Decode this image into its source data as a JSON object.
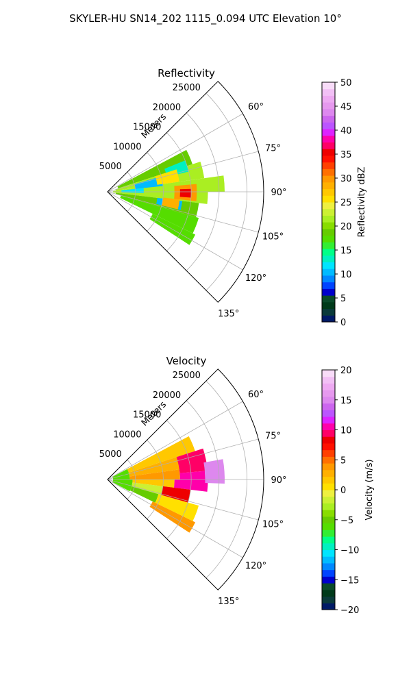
{
  "figure": {
    "suptitle": "SKYLER-HU  SN14_202  1115_0.094 UTC Elevation 10°"
  },
  "chart_data": [
    {
      "type": "heatmap",
      "projection": "polar-sector",
      "title": "Reflectivity",
      "radial_axis_label": "Meters",
      "radial_ticks": [
        "5000",
        "10000",
        "15000",
        "20000",
        "25000"
      ],
      "radial_tick_values": [
        5000,
        10000,
        15000,
        20000,
        25000
      ],
      "radial_range": [
        0,
        28000
      ],
      "azimuth_ticks": [
        "60°",
        "75°",
        "90°",
        "105°",
        "120°",
        "135°"
      ],
      "azimuth_tick_values": [
        60,
        75,
        90,
        105,
        120,
        135
      ],
      "azimuth_range": [
        45,
        135
      ],
      "grid": true,
      "colorbar": {
        "label": "Reflectivity dBZ",
        "ticks": [
          "0",
          "5",
          "10",
          "15",
          "20",
          "25",
          "30",
          "35",
          "40",
          "45",
          "50"
        ],
        "range": [
          0,
          50
        ],
        "colors": [
          "#001a66",
          "#0a3a3a",
          "#003a1a",
          "#0a4a2a",
          "#0000cc",
          "#0044ff",
          "#0088ff",
          "#00bbff",
          "#00e5ff",
          "#00f0c0",
          "#00ff88",
          "#33ee33",
          "#55dd00",
          "#66cc00",
          "#88dd00",
          "#aaee22",
          "#ccf033",
          "#eef040",
          "#ffe000",
          "#ffc800",
          "#ffb000",
          "#ff9900",
          "#ff7000",
          "#ff4000",
          "#ff1000",
          "#ee0000",
          "#ff0066",
          "#ff00aa",
          "#dd22ff",
          "#bb55ff",
          "#cc66ee",
          "#dd88ee",
          "#e699ee",
          "#eeaaf2",
          "#f2c0f5",
          "#f8dcf8"
        ]
      },
      "cells": [
        {
          "az_min": 62,
          "az_max": 72,
          "r_min": 2000,
          "r_max": 16000,
          "value": 19
        },
        {
          "az_min": 72,
          "az_max": 82,
          "r_min": 1500,
          "r_max": 17500,
          "value": 21
        },
        {
          "az_min": 82,
          "az_max": 90,
          "r_min": 1000,
          "r_max": 21000,
          "value": 22
        },
        {
          "az_min": 90,
          "az_max": 97,
          "r_min": 1000,
          "r_max": 18000,
          "value": 21
        },
        {
          "az_min": 97,
          "az_max": 106,
          "r_min": 1500,
          "r_max": 16500,
          "value": 19
        },
        {
          "az_min": 106,
          "az_max": 116,
          "r_min": 2500,
          "r_max": 17000,
          "value": 18
        },
        {
          "az_min": 116,
          "az_max": 123,
          "r_min": 9000,
          "r_max": 17500,
          "value": 17
        },
        {
          "az_min": 84,
          "az_max": 92,
          "r_min": 2500,
          "r_max": 6500,
          "value": 12
        },
        {
          "az_min": 74,
          "az_max": 84,
          "r_min": 5000,
          "r_max": 10000,
          "value": 10
        },
        {
          "az_min": 68,
          "az_max": 76,
          "r_min": 11000,
          "r_max": 15000,
          "value": 13
        },
        {
          "az_min": 97,
          "az_max": 104,
          "r_min": 9000,
          "r_max": 13500,
          "value": 10
        },
        {
          "az_min": 85,
          "az_max": 96,
          "r_min": 12000,
          "r_max": 16000,
          "value": 30
        },
        {
          "az_min": 88,
          "az_max": 94,
          "r_min": 13000,
          "r_max": 15000,
          "value": 36
        },
        {
          "az_min": 96,
          "az_max": 104,
          "r_min": 10000,
          "r_max": 13000,
          "value": 28
        },
        {
          "az_min": 72,
          "az_max": 82,
          "r_min": 9000,
          "r_max": 13000,
          "value": 26
        }
      ]
    },
    {
      "type": "heatmap",
      "projection": "polar-sector",
      "title": "Velocity",
      "radial_axis_label": "Meters",
      "radial_ticks": [
        "5000",
        "10000",
        "15000",
        "20000",
        "25000"
      ],
      "radial_tick_values": [
        5000,
        10000,
        15000,
        20000,
        25000
      ],
      "radial_range": [
        0,
        28000
      ],
      "azimuth_ticks": [
        "60°",
        "75°",
        "90°",
        "105°",
        "120°",
        "135°"
      ],
      "azimuth_tick_values": [
        60,
        75,
        90,
        105,
        120,
        135
      ],
      "azimuth_range": [
        45,
        135
      ],
      "grid": true,
      "colorbar": {
        "label": "Velocity (m/s)",
        "ticks": [
          "−20",
          "−15",
          "−10",
          "−5",
          "0",
          "5",
          "10",
          "15",
          "20"
        ],
        "range": [
          -20,
          20
        ],
        "colors": [
          "#001a66",
          "#0a3a3a",
          "#003a1a",
          "#0a4a2a",
          "#0000cc",
          "#0044ff",
          "#0088ff",
          "#00bbff",
          "#00e5ff",
          "#00f0c0",
          "#00ff88",
          "#33ee33",
          "#55dd00",
          "#66cc00",
          "#88dd00",
          "#aaee22",
          "#ccf033",
          "#eef040",
          "#ffe000",
          "#ffc800",
          "#ffb000",
          "#ff9900",
          "#ff7000",
          "#ff4000",
          "#ff1000",
          "#ee0000",
          "#ff0066",
          "#ff00aa",
          "#dd22ff",
          "#bb55ff",
          "#cc66ee",
          "#dd88ee",
          "#e699ee",
          "#eeaaf2",
          "#f2c0f5",
          "#f8dcf8"
        ]
      },
      "cells": [
        {
          "az_min": 62,
          "az_max": 90,
          "r_min": 1000,
          "r_max": 4000,
          "value": -6
        },
        {
          "az_min": 90,
          "az_max": 118,
          "r_min": 1000,
          "r_max": 4500,
          "value": -6
        },
        {
          "az_min": 62,
          "az_max": 72,
          "r_min": 4000,
          "r_max": 16500,
          "value": 2
        },
        {
          "az_min": 72,
          "az_max": 82,
          "r_min": 4000,
          "r_max": 16000,
          "value": 3
        },
        {
          "az_min": 82,
          "az_max": 90,
          "r_min": 4000,
          "r_max": 13000,
          "value": 4
        },
        {
          "az_min": 90,
          "az_max": 97,
          "r_min": 4500,
          "r_max": 12000,
          "value": 2
        },
        {
          "az_min": 97,
          "az_max": 106,
          "r_min": 4500,
          "r_max": 10000,
          "value": -2
        },
        {
          "az_min": 106,
          "az_max": 116,
          "r_min": 4500,
          "r_max": 9500,
          "value": -5
        },
        {
          "az_min": 106,
          "az_max": 116,
          "r_min": 9500,
          "r_max": 17000,
          "value": 1
        },
        {
          "az_min": 116,
          "az_max": 123,
          "r_min": 9000,
          "r_max": 17500,
          "value": 4
        },
        {
          "az_min": 72,
          "az_max": 85,
          "r_min": 13000,
          "r_max": 18000,
          "value": 9
        },
        {
          "az_min": 85,
          "az_max": 90,
          "r_min": 13000,
          "r_max": 17500,
          "value": 10
        },
        {
          "az_min": 90,
          "az_max": 97,
          "r_min": 12000,
          "r_max": 18000,
          "value": 10
        },
        {
          "az_min": 97,
          "az_max": 106,
          "r_min": 10000,
          "r_max": 15000,
          "value": 8
        },
        {
          "az_min": 80,
          "az_max": 92,
          "r_min": 17500,
          "r_max": 21000,
          "value": 15
        }
      ]
    }
  ]
}
